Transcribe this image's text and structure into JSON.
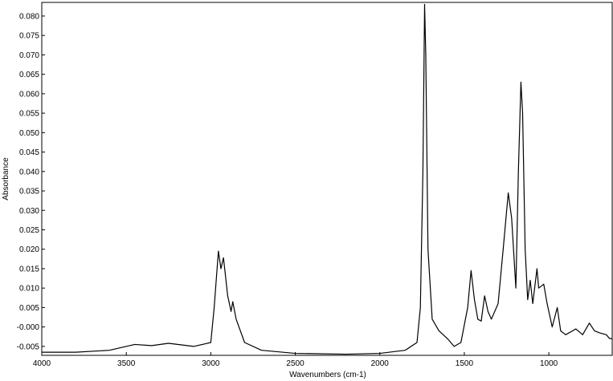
{
  "chart_data": {
    "type": "line",
    "x_label": "Wavenumbers (cm-1)",
    "y_label": "Absorbance",
    "x": [
      4000,
      3800,
      3600,
      3450,
      3350,
      3250,
      3100,
      3000,
      2980,
      2955,
      2940,
      2925,
      2900,
      2880,
      2870,
      2850,
      2800,
      2700,
      2500,
      2200,
      2000,
      1850,
      1780,
      1760,
      1745,
      1735,
      1728,
      1715,
      1690,
      1650,
      1600,
      1560,
      1520,
      1480,
      1460,
      1440,
      1420,
      1400,
      1380,
      1360,
      1340,
      1300,
      1270,
      1240,
      1220,
      1195,
      1180,
      1165,
      1155,
      1140,
      1125,
      1110,
      1095,
      1070,
      1060,
      1030,
      1010,
      980,
      950,
      930,
      900,
      860,
      840,
      800,
      760,
      730,
      700,
      660,
      640,
      625
    ],
    "y": [
      -0.0065,
      -0.0065,
      -0.006,
      -0.0045,
      -0.0048,
      -0.0042,
      -0.005,
      -0.004,
      0.005,
      0.0195,
      0.015,
      0.0178,
      0.008,
      0.004,
      0.0065,
      0.002,
      -0.004,
      -0.006,
      -0.0068,
      -0.007,
      -0.0068,
      -0.006,
      -0.004,
      0.005,
      0.04,
      0.083,
      0.07,
      0.02,
      0.002,
      -0.001,
      -0.003,
      -0.005,
      -0.004,
      0.005,
      0.0145,
      0.007,
      0.002,
      0.0015,
      0.008,
      0.004,
      0.002,
      0.006,
      0.02,
      0.0345,
      0.028,
      0.01,
      0.04,
      0.063,
      0.055,
      0.02,
      0.007,
      0.012,
      0.006,
      0.015,
      0.01,
      0.011,
      0.006,
      0.0,
      0.005,
      -0.001,
      -0.002,
      -0.001,
      -0.0005,
      -0.002,
      0.001,
      -0.001,
      -0.0015,
      -0.002,
      -0.003,
      -0.003
    ],
    "color": "#000000",
    "xlim": [
      4000,
      625
    ],
    "ylim": [
      -0.0073,
      0.0835
    ],
    "xticks": [
      4000,
      3500,
      3000,
      2500,
      2000,
      1500,
      1000
    ],
    "yticks": [
      {
        "value": -0.005,
        "label": "-0.005"
      },
      {
        "value": 0,
        "label": "-0.000"
      },
      {
        "value": 0.005,
        "label": "0.005"
      },
      {
        "value": 0.01,
        "label": "0.010"
      },
      {
        "value": 0.015,
        "label": "0.015"
      },
      {
        "value": 0.02,
        "label": "0.020"
      },
      {
        "value": 0.025,
        "label": "0.025"
      },
      {
        "value": 0.03,
        "label": "0.030"
      },
      {
        "value": 0.035,
        "label": "0.035"
      },
      {
        "value": 0.04,
        "label": "0.040"
      },
      {
        "value": 0.045,
        "label": "0.045"
      },
      {
        "value": 0.05,
        "label": "0.050"
      },
      {
        "value": 0.055,
        "label": "0.055"
      },
      {
        "value": 0.06,
        "label": "0.060"
      },
      {
        "value": 0.065,
        "label": "0.065"
      },
      {
        "value": 0.07,
        "label": "0.070"
      },
      {
        "value": 0.075,
        "label": "0.075"
      },
      {
        "value": 0.08,
        "label": "0.080"
      }
    ]
  }
}
